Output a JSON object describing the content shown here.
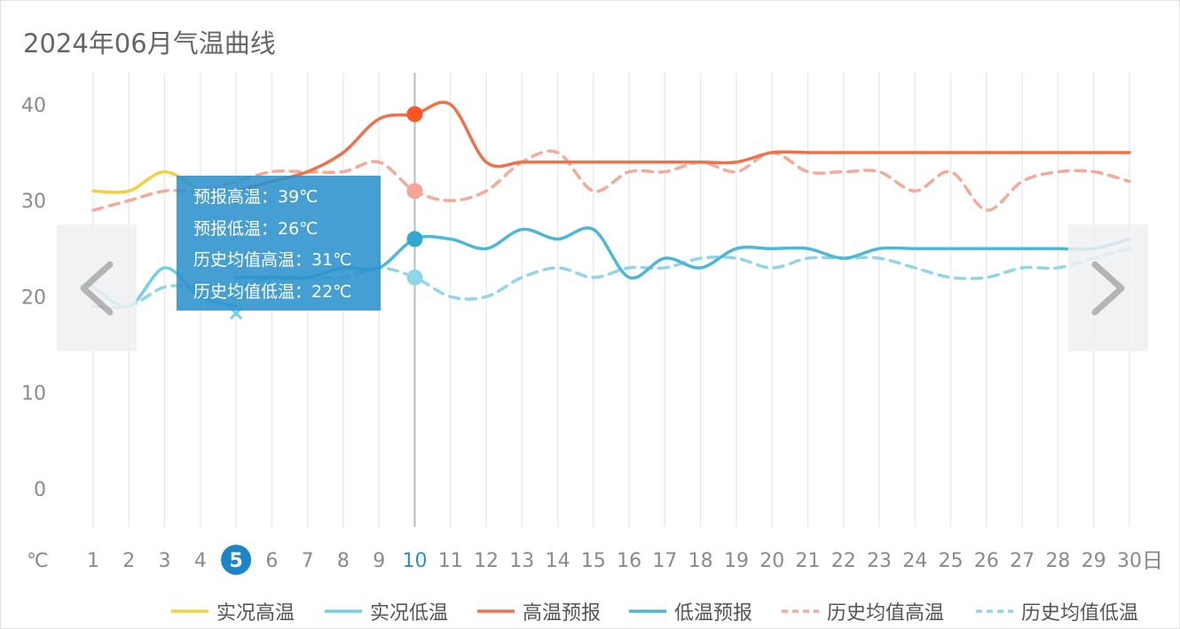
{
  "title": "2024年06月气温曲线",
  "navigation": {
    "prev_icon": "chevron-left-icon",
    "next_icon": "chevron-right-icon"
  },
  "tooltip": {
    "lines": [
      "预报高温：39℃",
      "预报低温：26℃",
      "历史均值高温：31℃",
      "历史均值低温：22℃"
    ]
  },
  "chart_data": {
    "type": "line",
    "title": "2024年06月气温曲线",
    "xlabel": "日",
    "ylabel": "℃",
    "ylim": [
      -4,
      43
    ],
    "yticks": [
      0,
      10,
      20,
      30,
      40
    ],
    "x": [
      1,
      2,
      3,
      4,
      5,
      6,
      7,
      8,
      9,
      10,
      11,
      12,
      13,
      14,
      15,
      16,
      17,
      18,
      19,
      20,
      21,
      22,
      23,
      24,
      25,
      26,
      27,
      28,
      29,
      30
    ],
    "highlighted_day": 5,
    "selected_day": 10,
    "grid": "vertical",
    "legend_position": "bottom",
    "series": [
      {
        "name": "实况高温",
        "color": "#f4d03f",
        "style": "solid",
        "points": [
          [
            1,
            31
          ],
          [
            2,
            31
          ],
          [
            3,
            33
          ],
          [
            4,
            31
          ]
        ]
      },
      {
        "name": "实况低温",
        "color": "#6fd0ea",
        "style": "solid",
        "points": [
          [
            1,
            21
          ],
          [
            2,
            19
          ],
          [
            3,
            23
          ],
          [
            4,
            20
          ],
          [
            5,
            19
          ]
        ]
      },
      {
        "name": "高温预报",
        "color": "#f0704a",
        "style": "solid",
        "points": [
          [
            5,
            31
          ],
          [
            6,
            32
          ],
          [
            7,
            33
          ],
          [
            8,
            35
          ],
          [
            9,
            38.5
          ],
          [
            10,
            39
          ],
          [
            11,
            40
          ],
          [
            12,
            34
          ],
          [
            13,
            34
          ],
          [
            14,
            34
          ],
          [
            15,
            34
          ],
          [
            16,
            34
          ],
          [
            17,
            34
          ],
          [
            18,
            34
          ],
          [
            19,
            34
          ],
          [
            20,
            35
          ],
          [
            21,
            35
          ],
          [
            22,
            35
          ],
          [
            23,
            35
          ],
          [
            24,
            35
          ],
          [
            25,
            35
          ],
          [
            26,
            35
          ],
          [
            27,
            35
          ],
          [
            28,
            35
          ],
          [
            29,
            35
          ],
          [
            30,
            35
          ]
        ]
      },
      {
        "name": "低温预报",
        "color": "#4ab8d8",
        "style": "solid",
        "points": [
          [
            5,
            22
          ],
          [
            6,
            22
          ],
          [
            7,
            22
          ],
          [
            8,
            23
          ],
          [
            9,
            23
          ],
          [
            10,
            26
          ],
          [
            11,
            26
          ],
          [
            12,
            25
          ],
          [
            13,
            27
          ],
          [
            14,
            26
          ],
          [
            15,
            27
          ],
          [
            16,
            22
          ],
          [
            17,
            24
          ],
          [
            18,
            23
          ],
          [
            19,
            25
          ],
          [
            20,
            25
          ],
          [
            21,
            25
          ],
          [
            22,
            24
          ],
          [
            23,
            25
          ],
          [
            24,
            25
          ],
          [
            25,
            25
          ],
          [
            26,
            25
          ],
          [
            27,
            25
          ],
          [
            28,
            25
          ],
          [
            29,
            25
          ],
          [
            30,
            26
          ]
        ]
      },
      {
        "name": "历史均值高温",
        "color": "#f7a996",
        "style": "dashed",
        "points": [
          [
            1,
            29
          ],
          [
            2,
            30
          ],
          [
            3,
            31
          ],
          [
            4,
            31
          ],
          [
            5,
            32
          ],
          [
            6,
            33
          ],
          [
            7,
            33
          ],
          [
            8,
            33
          ],
          [
            9,
            34
          ],
          [
            10,
            31
          ],
          [
            11,
            30
          ],
          [
            12,
            31
          ],
          [
            13,
            34
          ],
          [
            14,
            35
          ],
          [
            15,
            31
          ],
          [
            16,
            33
          ],
          [
            17,
            33
          ],
          [
            18,
            34
          ],
          [
            19,
            33
          ],
          [
            20,
            35
          ],
          [
            21,
            33
          ],
          [
            22,
            33
          ],
          [
            23,
            33
          ],
          [
            24,
            31
          ],
          [
            25,
            33
          ],
          [
            26,
            29
          ],
          [
            27,
            32
          ],
          [
            28,
            33
          ],
          [
            29,
            33
          ],
          [
            30,
            32
          ]
        ]
      },
      {
        "name": "历史均值低温",
        "color": "#8fd6ea",
        "style": "dashed",
        "points": [
          [
            1,
            19
          ],
          [
            2,
            19
          ],
          [
            3,
            21
          ],
          [
            4,
            21
          ],
          [
            5,
            21
          ],
          [
            6,
            22
          ],
          [
            7,
            22
          ],
          [
            8,
            22
          ],
          [
            9,
            23
          ],
          [
            10,
            22
          ],
          [
            11,
            20
          ],
          [
            12,
            20
          ],
          [
            13,
            22
          ],
          [
            14,
            23
          ],
          [
            15,
            22
          ],
          [
            16,
            23
          ],
          [
            17,
            23
          ],
          [
            18,
            24
          ],
          [
            19,
            24
          ],
          [
            20,
            23
          ],
          [
            21,
            24
          ],
          [
            22,
            24
          ],
          [
            23,
            24
          ],
          [
            24,
            23
          ],
          [
            25,
            22
          ],
          [
            26,
            22
          ],
          [
            27,
            23
          ],
          [
            28,
            23
          ],
          [
            29,
            24
          ],
          [
            30,
            25
          ]
        ]
      }
    ],
    "selected_points": [
      {
        "series": "高温预报",
        "x": 10,
        "y": 39,
        "color": "#ff5522"
      },
      {
        "series": "低温预报",
        "x": 10,
        "y": 26,
        "color": "#30a8d0"
      },
      {
        "series": "历史均值高温",
        "x": 10,
        "y": 31,
        "color": "#f5a593"
      },
      {
        "series": "历史均值低温",
        "x": 10,
        "y": 22,
        "color": "#8fd6ea"
      }
    ]
  }
}
